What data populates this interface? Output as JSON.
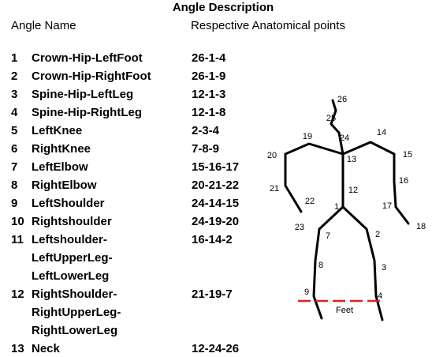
{
  "header": {
    "title": "Angle Description",
    "col_name": "Angle Name",
    "col_points": "Respective Anatomical points"
  },
  "rows": [
    {
      "number": "1",
      "name": [
        "Crown-Hip-LeftFoot"
      ],
      "points": "26-1-4"
    },
    {
      "number": "2",
      "name": [
        "Crown-Hip-RightFoot"
      ],
      "points": "26-1-9"
    },
    {
      "number": "3",
      "name": [
        "Spine-Hip-LeftLeg"
      ],
      "points": "12-1-3"
    },
    {
      "number": "4",
      "name": [
        "Spine-Hip-RightLeg"
      ],
      "points": "12-1-8"
    },
    {
      "number": "5",
      "name": [
        "LeftKnee"
      ],
      "points": "2-3-4"
    },
    {
      "number": "6",
      "name": [
        "RightKnee"
      ],
      "points": "7-8-9"
    },
    {
      "number": "7",
      "name": [
        "LeftElbow"
      ],
      "points": "15-16-17"
    },
    {
      "number": "8",
      "name": [
        "RightElbow"
      ],
      "points": "20-21-22"
    },
    {
      "number": "9",
      "name": [
        "LeftShoulder"
      ],
      "points": "24-14-15"
    },
    {
      "number": "10",
      "name": [
        "Rightshoulder"
      ],
      "points": "24-19-20"
    },
    {
      "number": "11",
      "name": [
        "Leftshoulder-",
        "LeftUpperLeg-",
        "LeftLowerLeg"
      ],
      "points": "16-14-2"
    },
    {
      "number": "12",
      "name": [
        "RightShoulder-",
        "RightUpperLeg-",
        "RightLowerLeg"
      ],
      "points": "21-19-7"
    },
    {
      "number": "13",
      "name": [
        "Neck"
      ],
      "points": "12-24-26"
    }
  ],
  "skeleton": {
    "labels": [
      "1",
      "2",
      "3",
      "4",
      "7",
      "8",
      "9",
      "12",
      "13",
      "14",
      "15",
      "16",
      "17",
      "18",
      "19",
      "20",
      "21",
      "22",
      "23",
      "24",
      "25",
      "26"
    ],
    "feet": "Feet"
  }
}
